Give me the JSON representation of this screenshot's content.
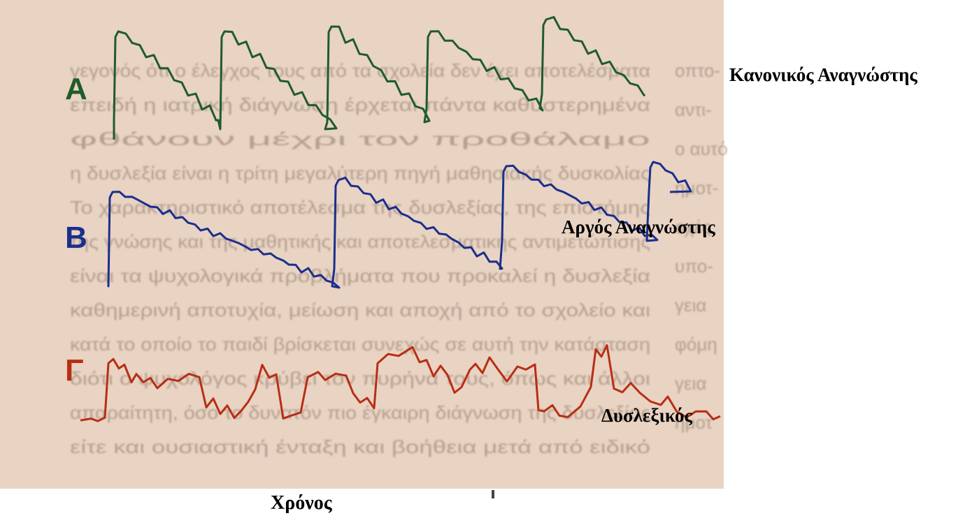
{
  "rows": [
    {
      "letter": "A",
      "label": "Κανονικός Αναγνώστης",
      "color": "#1f5c2a"
    },
    {
      "letter": "B",
      "label": "Αργός Αναγνώστης",
      "color": "#1a2f8c"
    },
    {
      "letter": "Γ",
      "label": "Δυσλεξικός",
      "color": "#b82e14"
    }
  ],
  "axis": {
    "x_label": "Χρόνος"
  },
  "colors": {
    "paper": "#e9d3c3",
    "background_text": "#8a7868"
  },
  "background_lines": [
    "γεγονός ότι ο έλεγχος τους από τα σχολεία δεν έχει αποτελέσματα",
    "επειδή η ιατρική διάγνωση έρχεται πάντα καθυστερημένα",
    "φθάνουν μέχρι τον προθάλαμο",
    "η δυσλεξία είναι η τρίτη μεγαλύτερη πηγή μαθησιακής δυσκολίας",
    "Το χαρακτηριστικό αποτέλεσμα της δυσλεξίας, της επιστήμης",
    "της γνώσης και της μαθητικής και αποτελεσματικής αντιμετώπισης",
    "είναι τα ψυχολογικά προβλήματα που προκαλεί η δυσλεξία",
    "καθημερινή αποτυχία, μείωση και αποχή από το σχολείο και",
    "κατά το οποίο το παιδί βρίσκεται συνεχώς σε αυτή την κατάσταση",
    "διότι ο ψυχολόγος κρύβει τον πυρήνα τους, όπως και άλλοι",
    "απαραίτητη, όσο το δυνατόν πιο έγκαιρη διάγνωση της δυσλεξίας",
    "είτε και ουσιαστική ένταξη και βοήθεια μετά από ειδικό"
  ]
}
